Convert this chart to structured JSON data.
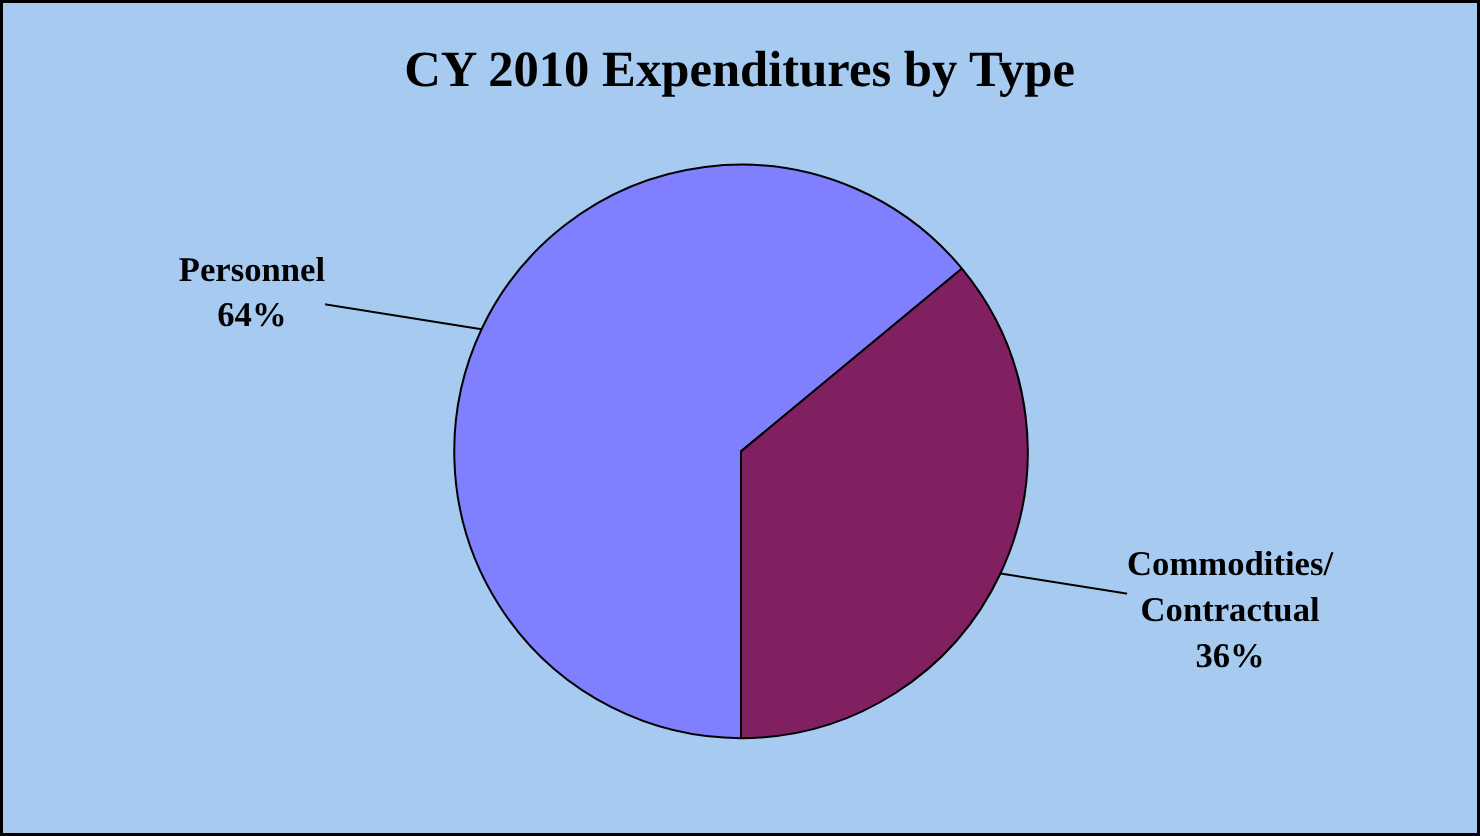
{
  "chart_data": {
    "type": "pie",
    "title": "CY 2010 Expenditures by Type",
    "categories": [
      "Personnel",
      "Commodities/\nContractual"
    ],
    "values": [
      64,
      36
    ],
    "value_labels": [
      "64%",
      "36%"
    ],
    "colors": [
      "#8080ff",
      "#802060"
    ]
  }
}
